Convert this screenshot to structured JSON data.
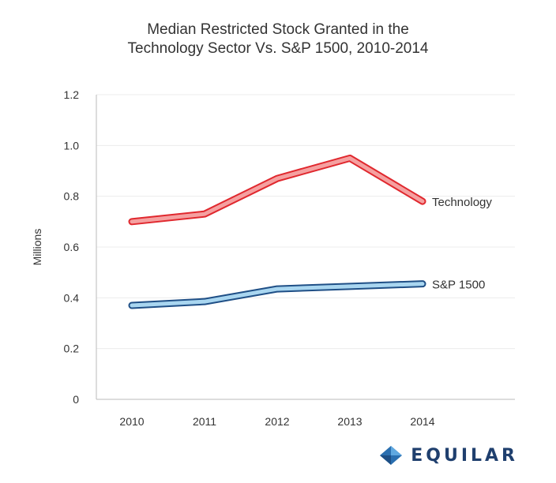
{
  "chart_data": {
    "type": "line",
    "title_lines": [
      "Median Restricted Stock Granted in the",
      "Technology Sector Vs. S&P 1500, 2010-2014"
    ],
    "title": "Median Restricted Stock Granted in the Technology Sector Vs. S&P 1500, 2010-2014",
    "xlabel": "",
    "ylabel": "Millions",
    "categories": [
      "2010",
      "2011",
      "2012",
      "2013",
      "2014"
    ],
    "ylim": [
      0,
      1.2
    ],
    "yticks": [
      0,
      0.2,
      0.4,
      0.6,
      0.8,
      1.0,
      1.2
    ],
    "ytick_labels": [
      "0",
      "0.2",
      "0.4",
      "0.6",
      "0.8",
      "1.0",
      "1.2"
    ],
    "grid": true,
    "series": [
      {
        "name": "Technology",
        "values": [
          0.7,
          0.73,
          0.87,
          0.95,
          0.78
        ],
        "fill": "#f5a0a0",
        "stroke": "#e0282e"
      },
      {
        "name": "S&P 1500",
        "values": [
          0.37,
          0.385,
          0.435,
          0.445,
          0.455
        ],
        "fill": "#a9d6f0",
        "stroke": "#1f4f86"
      }
    ]
  },
  "brand": {
    "name": "EQUILAR",
    "color": "#1f3f6e"
  }
}
